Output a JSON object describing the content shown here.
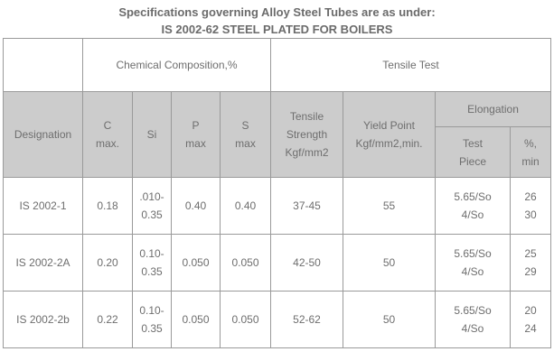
{
  "title": "Specifications governing Alloy Steel Tubes are as under:",
  "subtitle": "IS 2002-62 STEEL PLATED FOR BOILERS",
  "header": {
    "chemical_composition": "Chemical Composition,%",
    "tensile_test": "Tensile Test",
    "designation": "Designation",
    "c": [
      "C",
      "max."
    ],
    "si": "Si",
    "p": [
      "P",
      "max"
    ],
    "s": [
      "S",
      "max"
    ],
    "tensile_strength": [
      "Tensile",
      "Strength",
      "Kgf/mm2"
    ],
    "yield_point": [
      "Yield Point",
      "Kgf/mm2,min."
    ],
    "elongation": "Elongation",
    "test_piece": [
      "Test",
      "Piece"
    ],
    "percent_min": [
      "%,",
      "min"
    ]
  },
  "rows": [
    {
      "designation": "IS 2002-1",
      "c": "0.18",
      "si": [
        ".010-",
        "0.35"
      ],
      "p": "0.40",
      "s": "0.40",
      "tensile": "37-45",
      "yield": "55",
      "piece": [
        "5.65/So",
        "4/So"
      ],
      "pct": [
        "26",
        "30"
      ]
    },
    {
      "designation": "IS 2002-2A",
      "c": "0.20",
      "si": [
        "0.10-",
        "0.35"
      ],
      "p": "0.050",
      "s": "0.050",
      "tensile": "42-50",
      "yield": "50",
      "piece": [
        "5.65/So",
        "4/So"
      ],
      "pct": [
        "25",
        "29"
      ]
    },
    {
      "designation": "IS 2002-2b",
      "c": "0.22",
      "si": [
        "0.10-",
        "0.35"
      ],
      "p": "0.050",
      "s": "0.050",
      "tensile": "52-62",
      "yield": "50",
      "piece": [
        "5.65/So",
        "4/So"
      ],
      "pct": [
        "20",
        "24"
      ]
    }
  ]
}
